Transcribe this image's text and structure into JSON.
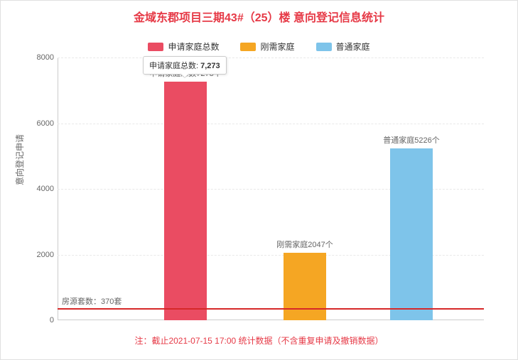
{
  "title": {
    "text": "金域东郡项目三期43#（25）楼 意向登记信息统计",
    "color": "#e63946",
    "fontsize": 16
  },
  "legend": {
    "position": "top-center",
    "items": [
      {
        "label": "申请家庭总数",
        "color": "#ea4c62"
      },
      {
        "label": "刚需家庭",
        "color": "#f5a623"
      },
      {
        "label": "普通家庭",
        "color": "#7ec4ea"
      }
    ],
    "fontsize": 12
  },
  "chart": {
    "type": "bar",
    "y_axis": {
      "label": "意向登记申请",
      "min": 0,
      "max": 8000,
      "tick_step": 2000,
      "ticks": [
        0,
        2000,
        4000,
        6000,
        8000
      ],
      "label_fontsize": 12,
      "tick_fontsize": 11,
      "tick_color": "#666666",
      "grid_color": "#e8e8e8",
      "axis_color": "#cccccc"
    },
    "bars": [
      {
        "series": "申请家庭总数",
        "value": 7273,
        "color": "#ea4c62",
        "label": "申请家庭总数7273个",
        "center_frac": 0.3,
        "width_frac": 0.1
      },
      {
        "series": "刚需家庭",
        "value": 2047,
        "color": "#f5a623",
        "label": "刚需家庭2047个",
        "center_frac": 0.58,
        "width_frac": 0.1
      },
      {
        "series": "普通家庭",
        "value": 5226,
        "color": "#7ec4ea",
        "label": "普通家庭5226个",
        "center_frac": 0.83,
        "width_frac": 0.1
      }
    ],
    "reference_line": {
      "value": 370,
      "label": "房源套数：370套",
      "color": "#d62828",
      "width": 2
    },
    "tooltip": {
      "visible": true,
      "series": "申请家庭总数",
      "value_text": "7,273",
      "target_bar_index": 0
    },
    "background_color": "#ffffff"
  },
  "footnote": {
    "text": "注：截止2021-07-15 17:00 统计数据（不含重复申请及撤销数据）",
    "color": "#e63946",
    "fontsize": 12
  }
}
